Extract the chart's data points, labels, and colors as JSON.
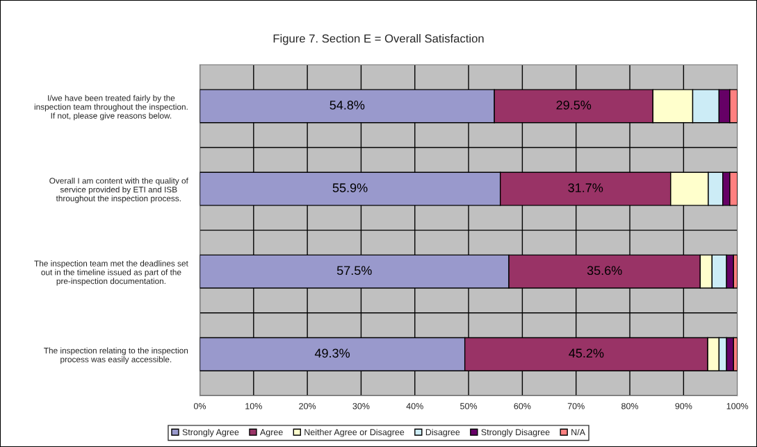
{
  "chart_data": {
    "type": "bar",
    "orientation": "horizontal",
    "stacked": true,
    "title": "Figure 7. Section E = Overall Satisfaction",
    "categories": [
      "I/we have been treated fairly by the\ninspection team throughout the inspection.\nIf not, please give reasons below.",
      "Overall I am content with the quality of\nservice provided by ETI and ISB\nthroughout the inspection process.",
      "The inspection team met the deadlines set\nout in the timeline issued as part of the\npre-inspection documentation.",
      "The inspection relating to the inspection\nprocess was easily accessible."
    ],
    "series": [
      {
        "name": "Strongly Agree",
        "color": "#9999cc",
        "values": [
          54.8,
          55.9,
          57.5,
          49.3
        ],
        "value_labels": [
          "54.8%",
          "55.9%",
          "57.5%",
          "49.3%"
        ]
      },
      {
        "name": "Agree",
        "color": "#993366",
        "values": [
          29.5,
          31.7,
          35.6,
          45.2
        ],
        "value_labels": [
          "29.5%",
          "31.7%",
          "35.6%",
          "45.2%"
        ]
      },
      {
        "name": "Neither Agree or Disagree",
        "color": "#ffffcc",
        "values": [
          7.4,
          7.0,
          2.2,
          2.1
        ]
      },
      {
        "name": "Disagree",
        "color": "#ccecf6",
        "values": [
          4.9,
          2.7,
          2.7,
          1.4
        ]
      },
      {
        "name": "Strongly Disagree",
        "color": "#660066",
        "values": [
          2.0,
          1.3,
          1.3,
          1.3
        ]
      },
      {
        "name": "N/A",
        "color": "#ff8080",
        "values": [
          1.4,
          1.4,
          0.7,
          0.7
        ]
      }
    ],
    "xlim": [
      0,
      100
    ],
    "xticks": [
      {
        "value": 0,
        "label": "0%"
      },
      {
        "value": 10,
        "label": "10%"
      },
      {
        "value": 20,
        "label": "20%"
      },
      {
        "value": 30,
        "label": "30%"
      },
      {
        "value": 40,
        "label": "40%"
      },
      {
        "value": 50,
        "label": "50%"
      },
      {
        "value": 60,
        "label": "60%"
      },
      {
        "value": 70,
        "label": "70%"
      },
      {
        "value": 80,
        "label": "80%"
      },
      {
        "value": 90,
        "label": "90%"
      },
      {
        "value": 100,
        "label": "100%"
      }
    ],
    "grid": true,
    "legend": "bottom"
  }
}
